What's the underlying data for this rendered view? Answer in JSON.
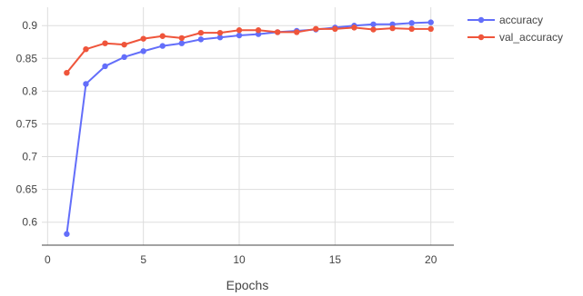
{
  "chart_data": {
    "type": "line",
    "title": "",
    "xlabel": "Epochs",
    "ylabel": "",
    "xlim": [
      -0.3,
      21.2
    ],
    "ylim": [
      0.565,
      0.928
    ],
    "xticks": [
      0,
      5,
      10,
      15,
      20
    ],
    "xtick_labels": [
      "0",
      "5",
      "10",
      "15",
      "20"
    ],
    "yticks": [
      0.6,
      0.65,
      0.7,
      0.75,
      0.8,
      0.85,
      0.9
    ],
    "ytick_labels": [
      "0.6",
      "0.65",
      "0.7",
      "0.75",
      "0.8",
      "0.85",
      "0.9"
    ],
    "grid": true,
    "legend_position": "top-right",
    "x": [
      1,
      2,
      3,
      4,
      5,
      6,
      7,
      8,
      9,
      10,
      11,
      12,
      13,
      14,
      15,
      16,
      17,
      18,
      19,
      20
    ],
    "series": [
      {
        "name": "accuracy",
        "color": "#636efa",
        "values": [
          0.582,
          0.811,
          0.838,
          0.852,
          0.861,
          0.869,
          0.873,
          0.879,
          0.882,
          0.885,
          0.887,
          0.89,
          0.892,
          0.894,
          0.897,
          0.9,
          0.902,
          0.902,
          0.904,
          0.905
        ]
      },
      {
        "name": "val_accuracy",
        "color": "#ef553b",
        "values": [
          0.828,
          0.864,
          0.873,
          0.871,
          0.88,
          0.884,
          0.881,
          0.889,
          0.889,
          0.893,
          0.893,
          0.89,
          0.89,
          0.895,
          0.895,
          0.897,
          0.894,
          0.896,
          0.895,
          0.895
        ]
      }
    ]
  }
}
